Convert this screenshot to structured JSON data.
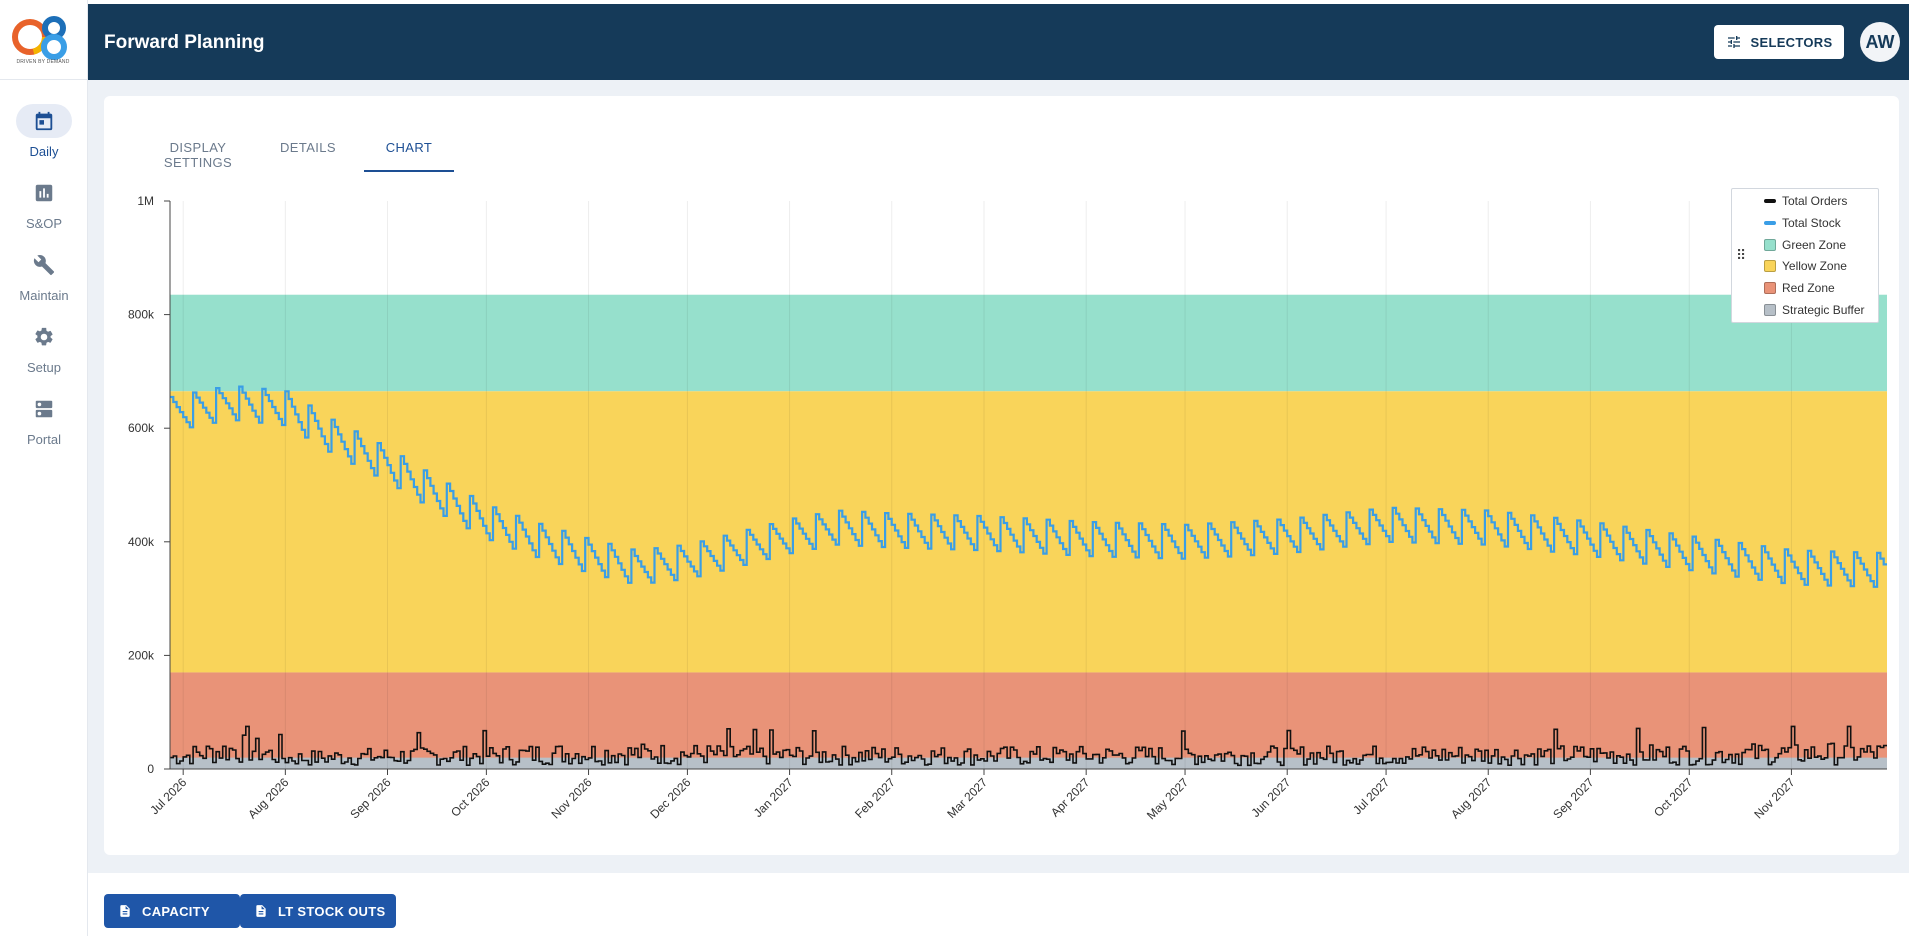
{
  "app": {
    "title": "Forward Planning",
    "logo_caption": "DRIVEN BY DEMAND"
  },
  "header": {
    "selectors_label": "SELECTORS",
    "avatar_initials": "AW"
  },
  "sidebar": {
    "items": [
      {
        "label": "Daily",
        "icon": "calendar-icon",
        "active": true
      },
      {
        "label": "S&OP",
        "icon": "bar-chart-icon",
        "active": false
      },
      {
        "label": "Maintain",
        "icon": "wrench-icon",
        "active": false
      },
      {
        "label": "Setup",
        "icon": "gear-icon",
        "active": false
      },
      {
        "label": "Portal",
        "icon": "server-icon",
        "active": false
      }
    ]
  },
  "tabs": [
    {
      "label": "DISPLAY SETTINGS",
      "active": false
    },
    {
      "label": "DETAILS",
      "active": false
    },
    {
      "label": "CHART",
      "active": true
    }
  ],
  "footer": {
    "capacity_label": "CAPACITY",
    "stockouts_label": "LT STOCK OUTS"
  },
  "colors": {
    "header": "#153a59",
    "accent": "#1d4f94",
    "green_zone": "#96e0cc",
    "yellow_zone": "#f9d45a",
    "red_zone": "#e99378",
    "strategic_buffer": "#b7c0c8",
    "total_stock": "#3a9ee6",
    "total_orders": "#111111"
  },
  "chart_data": {
    "type": "area",
    "x_type": "date",
    "x_range": [
      "2026-06-27",
      "2027-11-30"
    ],
    "x_ticks": [
      "Jul 2026",
      "Aug 2026",
      "Sep 2026",
      "Oct 2026",
      "Nov 2026",
      "Dec 2026",
      "Jan 2027",
      "Feb 2027",
      "Mar 2027",
      "Apr 2027",
      "May 2027",
      "Jun 2027",
      "Jul 2027",
      "Aug 2027",
      "Sep 2027",
      "Oct 2027",
      "Nov 2027"
    ],
    "y_ticks": [
      "0",
      "200k",
      "400k",
      "600k",
      "800k",
      "1M"
    ],
    "ylim": [
      0,
      1000000
    ],
    "grid": true,
    "legend_position": "top-right",
    "zones": [
      {
        "name": "Green Zone",
        "from": 665000,
        "to": 835000
      },
      {
        "name": "Yellow Zone",
        "from": 170000,
        "to": 665000
      },
      {
        "name": "Red Zone",
        "from": 0,
        "to": 170000
      },
      {
        "name": "Strategic Buffer",
        "from": 0,
        "to": 20000
      }
    ],
    "series": [
      {
        "name": "Total Stock",
        "style": "step",
        "points": [
          [
            "2026-06-27",
            620000
          ],
          [
            "2026-07-15",
            640000
          ],
          [
            "2026-08-01",
            630000
          ],
          [
            "2026-08-15",
            580000
          ],
          [
            "2026-09-01",
            530000
          ],
          [
            "2026-09-15",
            480000
          ],
          [
            "2026-10-01",
            430000
          ],
          [
            "2026-10-15",
            400000
          ],
          [
            "2026-11-01",
            370000
          ],
          [
            "2026-11-15",
            350000
          ],
          [
            "2026-12-01",
            360000
          ],
          [
            "2026-12-15",
            380000
          ],
          [
            "2027-01-01",
            405000
          ],
          [
            "2027-01-15",
            420000
          ],
          [
            "2027-02-01",
            415000
          ],
          [
            "2027-03-01",
            410000
          ],
          [
            "2027-04-01",
            400000
          ],
          [
            "2027-05-01",
            395000
          ],
          [
            "2027-06-01",
            405000
          ],
          [
            "2027-07-01",
            425000
          ],
          [
            "2027-08-01",
            420000
          ],
          [
            "2027-09-01",
            400000
          ],
          [
            "2027-10-01",
            375000
          ],
          [
            "2027-11-01",
            350000
          ],
          [
            "2027-11-30",
            345000
          ]
        ],
        "sawtooth_amplitude": 70000,
        "cycle_days": 7
      },
      {
        "name": "Total Orders",
        "style": "step",
        "points": [
          [
            "2026-06-27",
            22000
          ],
          [
            "2026-07-20",
            40000
          ],
          [
            "2026-08-01",
            20000
          ],
          [
            "2026-09-01",
            24000
          ],
          [
            "2026-10-01",
            26000
          ],
          [
            "2026-11-01",
            30000
          ],
          [
            "2026-12-01",
            28000
          ],
          [
            "2027-01-01",
            26000
          ],
          [
            "2027-03-01",
            25000
          ],
          [
            "2027-06-01",
            26000
          ],
          [
            "2027-09-01",
            27000
          ],
          [
            "2027-11-30",
            30000
          ]
        ],
        "peak_max": 75000
      }
    ]
  }
}
